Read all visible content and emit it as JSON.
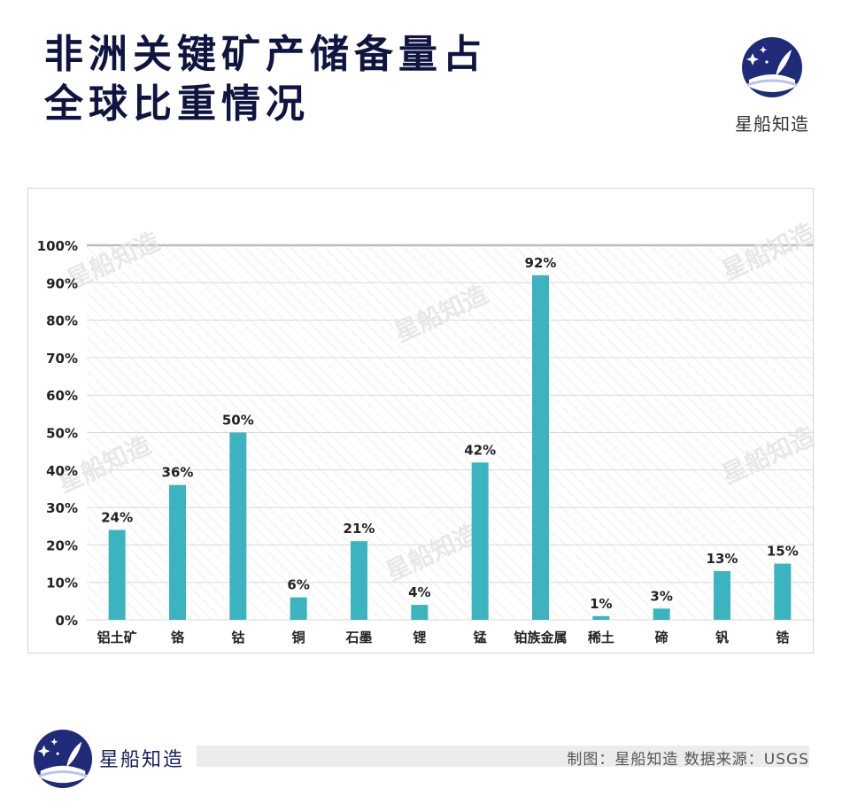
{
  "header": {
    "title_line1": "非洲关键矿产储备量占",
    "title_line2": "全球比重情况"
  },
  "brand": {
    "name": "星船知造",
    "watermark": "星船知造"
  },
  "footer": {
    "brand": "星船知造",
    "source": "制图：星船知造 数据来源：USGS"
  },
  "colors": {
    "bar": "#3cb4c0",
    "title": "#0f1440",
    "logo_bg": "#1f2a78"
  },
  "chart_data": {
    "type": "bar",
    "categories": [
      "铝土矿",
      "铬",
      "钴",
      "铜",
      "石墨",
      "锂",
      "锰",
      "铂族金属",
      "稀土",
      "碲",
      "钒",
      "锆"
    ],
    "values": [
      24,
      36,
      50,
      6,
      21,
      4,
      42,
      92,
      1,
      3,
      13,
      15
    ],
    "value_labels": [
      "24%",
      "36%",
      "50%",
      "6%",
      "21%",
      "4%",
      "42%",
      "92%",
      "1%",
      "3%",
      "13%",
      "15%"
    ],
    "yticks": [
      "0%",
      "10%",
      "20%",
      "30%",
      "40%",
      "50%",
      "60%",
      "70%",
      "80%",
      "90%",
      "100%"
    ],
    "ylim": [
      0,
      100
    ],
    "title": "",
    "xlabel": "",
    "ylabel": "",
    "grid": true,
    "legend": "none"
  }
}
